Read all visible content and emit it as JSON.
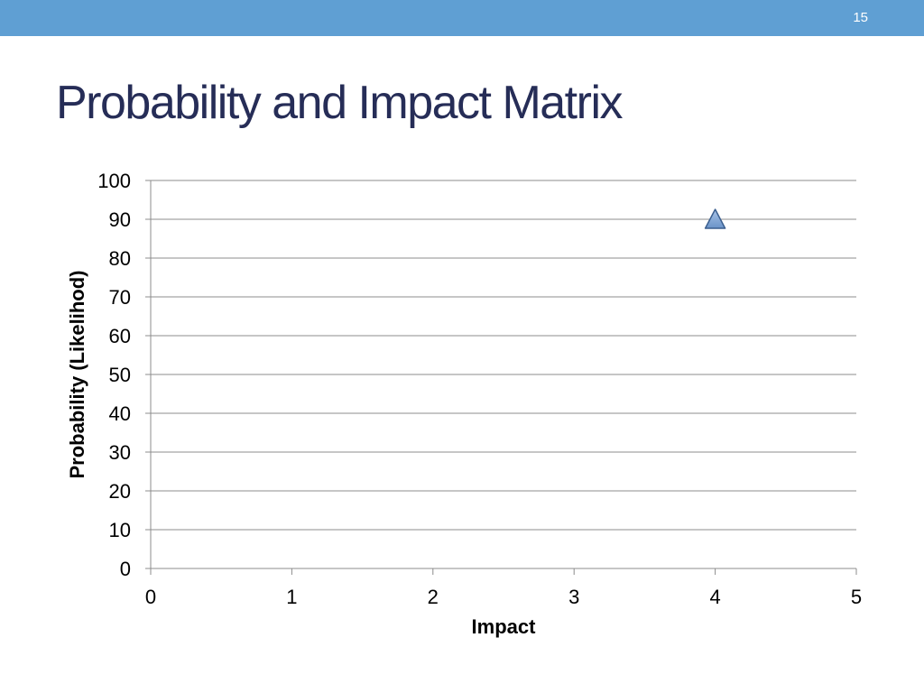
{
  "slide": {
    "number": "15",
    "title": "Probability and Impact Matrix"
  },
  "colors": {
    "top_bar": "#5f9fd3",
    "title": "#262d57",
    "gridline": "#8c8c8c",
    "marker_fill": "#6b93c8",
    "marker_stroke": "#3b5f8f"
  },
  "chart_data": {
    "type": "scatter",
    "xlabel": "Impact",
    "ylabel": "Probability (Likelihod)",
    "xlim": [
      0,
      5
    ],
    "ylim": [
      0,
      100
    ],
    "x_ticks": [
      "0",
      "1",
      "2",
      "3",
      "4",
      "5"
    ],
    "y_ticks": [
      "0",
      "10",
      "20",
      "30",
      "40",
      "50",
      "60",
      "70",
      "80",
      "90",
      "100"
    ],
    "grid": "horizontal",
    "legend": "none",
    "marker": "triangle",
    "points": [
      {
        "x": 4,
        "y": 90
      }
    ]
  }
}
